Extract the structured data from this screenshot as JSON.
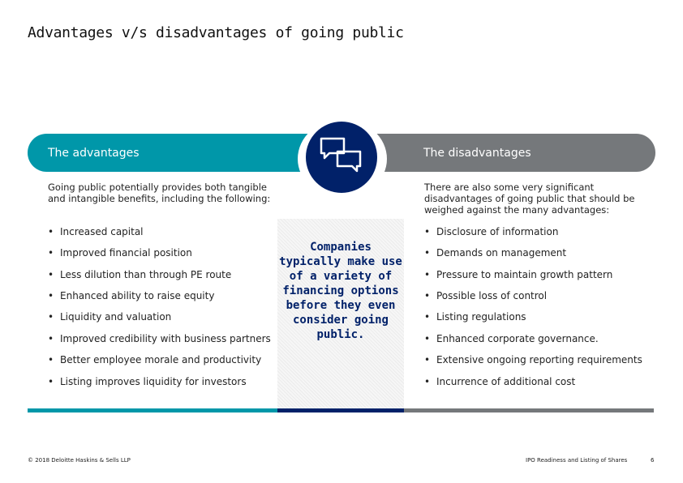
{
  "title": "Advantages v/s disadvantages of going public",
  "advantages": {
    "header": "The advantages",
    "intro": "Going public potentially provides both tangible and intangible benefits, including the following:",
    "items": [
      "Increased capital",
      "Improved financial position",
      "Less dilution than through PE route",
      "Enhanced ability to raise equity",
      "Liquidity and valuation",
      "Improved credibility with business partners",
      "Better employee morale and productivity",
      "Listing improves liquidity for investors"
    ]
  },
  "disadvantages": {
    "header": "The disadvantages",
    "intro": "There are also some very significant disadvantages of going public that should be weighed against the many advantages:",
    "items": [
      "Disclosure of information",
      "Demands on management",
      "Pressure to maintain growth pattern",
      "Possible loss of control",
      "Listing regulations",
      "Enhanced corporate governance.",
      "Extensive ongoing reporting requirements",
      "Incurrence of additional cost"
    ]
  },
  "center_text": "Companies typically make use of a variety of financing options before they even consider going public.",
  "icon": "speech-bubbles-icon",
  "colors": {
    "teal": "#0097a9",
    "navy": "#012169",
    "gray": "#75787b"
  },
  "footer": {
    "copyright": "© 2018 Deloitte Haskins & Sells LLP",
    "doc_title": "IPO Readiness and Listing of Shares",
    "page": "6"
  }
}
